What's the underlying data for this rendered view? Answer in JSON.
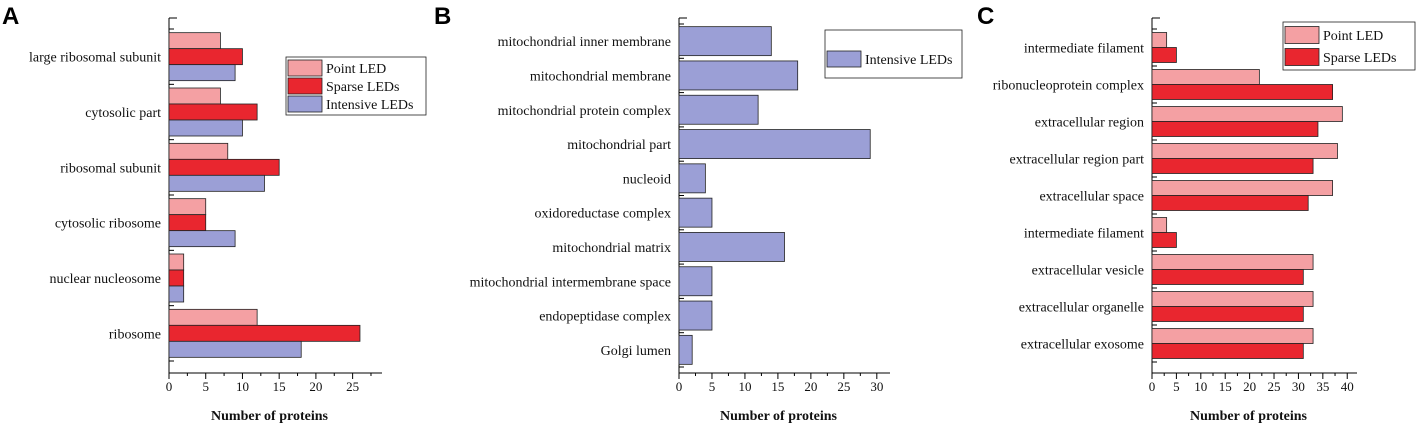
{
  "colors": {
    "point_led": "#f4a0a3",
    "sparse_leds": "#e9262f",
    "intensive_leds": "#9b9fd6"
  },
  "chart_data": [
    {
      "panel": "A",
      "type": "bar",
      "orientation": "horizontal",
      "xlabel": "Number of proteins",
      "xlim": [
        0,
        29
      ],
      "xticks": [
        0,
        5,
        10,
        15,
        20,
        25
      ],
      "legend_placement": "top-right",
      "categories": [
        "large ribosomal subunit",
        "cytosolic part",
        "ribosomal subunit",
        "cytosolic ribosome",
        "nuclear nucleosome",
        "ribosome"
      ],
      "series": [
        {
          "name": "Point LED",
          "color_key": "point_led",
          "values": [
            7,
            7,
            8,
            5,
            2,
            12
          ]
        },
        {
          "name": "Sparse LEDs",
          "color_key": "sparse_leds",
          "values": [
            10,
            12,
            15,
            5,
            2,
            26
          ]
        },
        {
          "name": "Intensive LEDs",
          "color_key": "intensive_leds",
          "values": [
            9,
            10,
            13,
            9,
            2,
            18
          ]
        }
      ]
    },
    {
      "panel": "B",
      "type": "bar",
      "orientation": "horizontal",
      "xlabel": "Number of proteins",
      "xlim": [
        0,
        32
      ],
      "xticks": [
        0,
        5,
        10,
        15,
        20,
        25,
        30
      ],
      "legend_placement": "top-right",
      "categories": [
        "mitochondrial inner membrane",
        "mitochondrial membrane",
        "mitochondrial protein complex",
        "mitochondrial part",
        "nucleoid",
        "oxidoreductase complex",
        "mitochondrial matrix",
        "mitochondrial intermembrane space",
        "endopeptidase complex",
        "Golgi lumen"
      ],
      "series": [
        {
          "name": "Intensive LEDs",
          "color_key": "intensive_leds",
          "values": [
            14,
            18,
            12,
            29,
            4,
            5,
            16,
            5,
            5,
            2
          ]
        }
      ]
    },
    {
      "panel": "C",
      "type": "bar",
      "orientation": "horizontal",
      "xlabel": "Number of proteins",
      "xlim": [
        0,
        42
      ],
      "xticks": [
        0,
        5,
        10,
        15,
        20,
        25,
        30,
        35,
        40
      ],
      "legend_placement": "top-right",
      "categories": [
        "intermediate filament",
        "ribonucleoprotein complex",
        "extracellular region",
        "extracellular region part",
        "extracellular space",
        "intermediate filament",
        "extracellular vesicle",
        "extracellular organelle",
        "extracellular exosome"
      ],
      "series": [
        {
          "name": "Point LED",
          "color_key": "point_led",
          "values": [
            3,
            22,
            39,
            38,
            37,
            3,
            33,
            33,
            33
          ]
        },
        {
          "name": "Sparse LEDs",
          "color_key": "sparse_leds",
          "values": [
            5,
            37,
            34,
            33,
            32,
            5,
            31,
            31,
            31
          ]
        }
      ]
    }
  ]
}
